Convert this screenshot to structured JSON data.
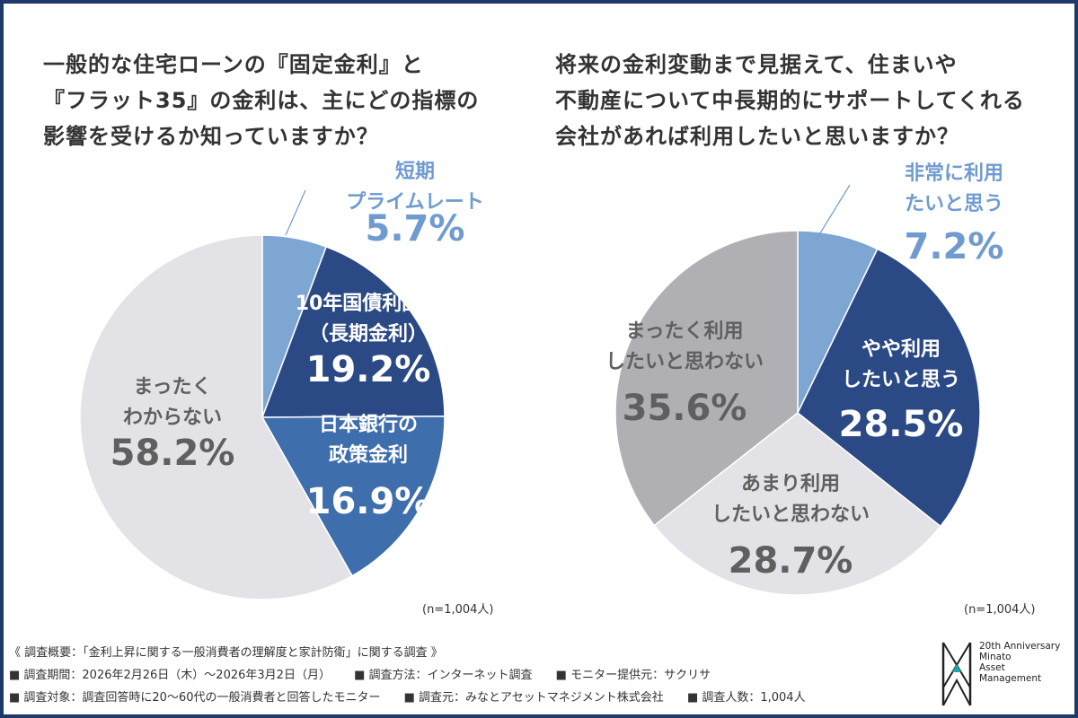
{
  "colors": {
    "frame": "#1d3a6b",
    "dark_navy": "#2b4a85",
    "mid_blue": "#3f6ead",
    "light_blue": "#7ea6d2",
    "light_gray": "#e3e2e7",
    "mid_gray": "#b0afb4",
    "label_gray": "#5f5f5f",
    "label_light_blue": "#6f9bd0"
  },
  "chart_data": [
    {
      "type": "pie",
      "title_lines": [
        "一般的な住宅ローンの『固定金利』と",
        "『フラット35』の金利は、主にどの指標の",
        "影響を受けるか知っていますか？"
      ],
      "sample_note": "(n=1,004人)",
      "slices": [
        {
          "label_lines": [
            "短期",
            "プライムレート"
          ],
          "value": 5.7,
          "value_text": "5.7%",
          "color": "#7ea6d2"
        },
        {
          "label_lines": [
            "10年国債利回り",
            "（長期金利）"
          ],
          "value": 19.2,
          "value_text": "19.2%",
          "color": "#2b4a85"
        },
        {
          "label_lines": [
            "日本銀行の",
            "政策金利"
          ],
          "value": 16.9,
          "value_text": "16.9%",
          "color": "#3f6ead"
        },
        {
          "label_lines": [
            "まったく",
            "わからない"
          ],
          "value": 58.2,
          "value_text": "58.2%",
          "color": "#e3e2e7"
        }
      ]
    },
    {
      "type": "pie",
      "title_lines": [
        "将来の金利変動まで見据えて、住まいや",
        "不動産について中長期的にサポートしてくれる",
        "会社があれば利用したいと思いますか？"
      ],
      "sample_note": "(n=1,004人)",
      "slices": [
        {
          "label_lines": [
            "非常に利用",
            "たいと思う"
          ],
          "value": 7.2,
          "value_text": "7.2%",
          "color": "#7ea6d2"
        },
        {
          "label_lines": [
            "やや利用",
            "したいと思う"
          ],
          "value": 28.5,
          "value_text": "28.5%",
          "color": "#2b4a85"
        },
        {
          "label_lines": [
            "あまり利用",
            "したいと思わない"
          ],
          "value": 28.7,
          "value_text": "28.7%",
          "color": "#e3e2e7"
        },
        {
          "label_lines": [
            "まったく利用",
            "したいと思わない"
          ],
          "value": 35.6,
          "value_text": "35.6%",
          "color": "#b0afb4"
        }
      ]
    }
  ],
  "footer": {
    "summary": "《 調査概要：「金利上昇に関する一般消費者の理解度と家計防衛」に関する調査 》",
    "line2": [
      "■ 調査期間：2026年2月26日（木）～2026年3月2日（月）",
      "■ 調査方法：インターネット調査",
      "■ モニター提供元：サクリサ"
    ],
    "line3": [
      "■ 調査対象：調査回答時に20～60代の一般消費者と回答したモニター",
      "■ 調査元：みなとアセットマネジメント株式会社",
      "■ 調査人数：1,004人"
    ]
  },
  "logo": {
    "lines": [
      "20th Anniversary",
      "Minato",
      "Asset",
      "Management"
    ]
  }
}
